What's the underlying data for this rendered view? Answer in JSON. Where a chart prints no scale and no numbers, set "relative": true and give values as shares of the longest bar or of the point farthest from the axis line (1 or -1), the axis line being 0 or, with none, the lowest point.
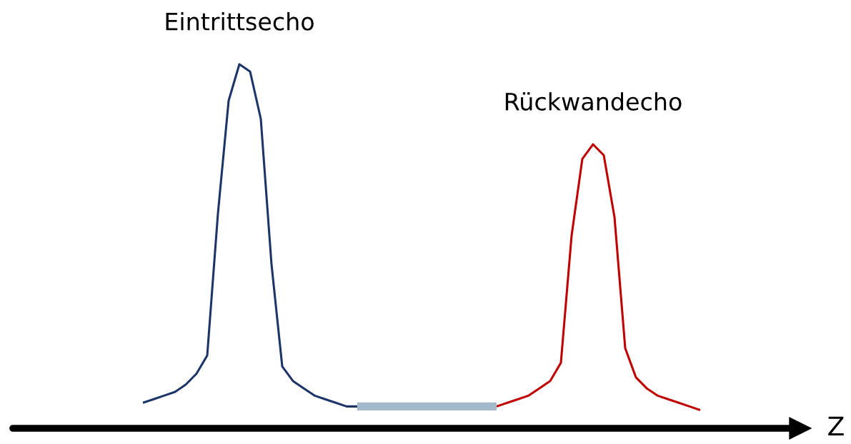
{
  "chart_data": {
    "type": "line",
    "relative": true,
    "xlabel": "Z",
    "legend": false,
    "grid": false,
    "categories": [
      null,
      null,
      null,
      null,
      null,
      null,
      null,
      null,
      null,
      null,
      null,
      null,
      null,
      null,
      null,
      null,
      null,
      null,
      null,
      null,
      null,
      null,
      null,
      null,
      null,
      null,
      null,
      null,
      null,
      null,
      null,
      null,
      null,
      null,
      null,
      null,
      null,
      null,
      null,
      null,
      null,
      null,
      null,
      null,
      null,
      null,
      null,
      null,
      null,
      null,
      null,
      null,
      null
    ],
    "series": [
      {
        "color": "#1c3468",
        "values": [
          0.07,
          0.08,
          0.09,
          0.1,
          0.12,
          0.15,
          0.2,
          0.59,
          0.9,
          1,
          0.98,
          0.85,
          0.45,
          0.17,
          0.13,
          0.11,
          0.09,
          0.08,
          0.07,
          0.06,
          0.06,
          null,
          null,
          null,
          null,
          null,
          null,
          null,
          null,
          null,
          null,
          null,
          null,
          null,
          null,
          null,
          null,
          null,
          null,
          null,
          null,
          null,
          null,
          null,
          null,
          null,
          null,
          null,
          null,
          null,
          null,
          null,
          null
        ]
      },
      {
        "color": "#c00000",
        "values": [
          null,
          null,
          null,
          null,
          null,
          null,
          null,
          null,
          null,
          null,
          null,
          null,
          null,
          null,
          null,
          null,
          null,
          null,
          null,
          null,
          null,
          null,
          null,
          null,
          null,
          null,
          null,
          null,
          null,
          null,
          null,
          null,
          null,
          0.06,
          0.07,
          0.08,
          0.09,
          0.11,
          0.13,
          0.18,
          0.53,
          0.74,
          0.78,
          0.75,
          0.58,
          0.22,
          0.14,
          0.11,
          0.09,
          0.08,
          0.07,
          0.06,
          0.05
        ]
      },
      {
        "color": "#a3b8c8",
        "values": [
          null,
          null,
          null,
          null,
          null,
          null,
          null,
          null,
          null,
          null,
          null,
          null,
          null,
          null,
          null,
          null,
          null,
          null,
          null,
          null,
          0.06,
          0.06,
          0.06,
          0.06,
          0.06,
          0.06,
          0.06,
          0.06,
          0.06,
          0.06,
          0.06,
          0.06,
          0.06,
          0.06,
          null,
          null,
          null,
          null,
          null,
          null,
          null,
          null,
          null,
          null,
          null,
          null,
          null,
          null,
          null,
          null,
          null,
          null,
          null
        ]
      }
    ],
    "annotations": [
      "Eintrittsecho",
      "Rückwandecho"
    ]
  }
}
